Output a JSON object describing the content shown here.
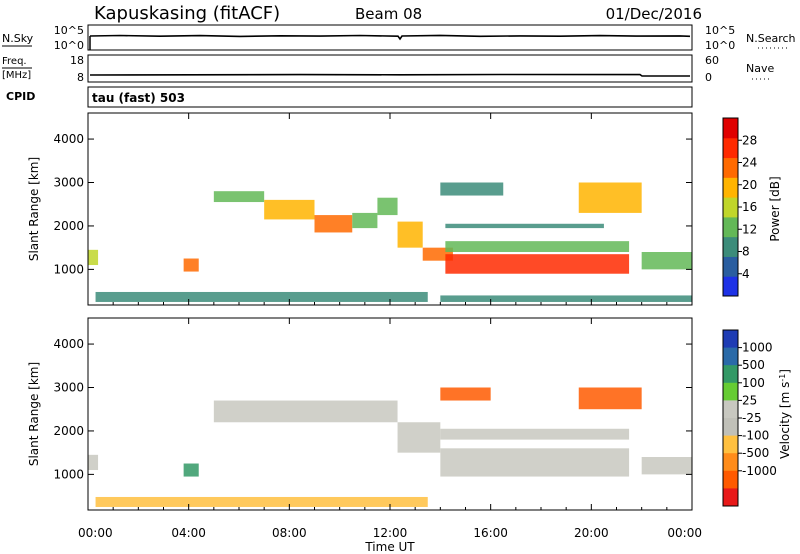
{
  "header": {
    "station": "Kapuskasing (fitACF)",
    "beam": "Beam 08",
    "date": "01/Dec/2016"
  },
  "sky_panel": {
    "left_label": "N.Sky",
    "left_ticks": [
      "10^5",
      "10^0"
    ],
    "right_ticks": [
      "10^5",
      "10^0"
    ],
    "right_label": "N.Search"
  },
  "freq_panel": {
    "left_label_top": "Freq.",
    "left_label_bottom": "[MHz]",
    "left_ticks": [
      "18",
      "8"
    ],
    "right_ticks": [
      "60",
      "0"
    ],
    "right_label": "Nave"
  },
  "cpid_panel": {
    "left_label": "CPID",
    "text": "tau (fast) 503"
  },
  "colors": {
    "power_scale": [
      "#1e32e6",
      "#2a5ea0",
      "#3c8c7a",
      "#63b857",
      "#c0d62a",
      "#ffb400",
      "#ff6a00",
      "#ff2a00",
      "#e00000"
    ],
    "velocity_scale": [
      "#e81919",
      "#ff5a00",
      "#ff8c1a",
      "#ffc040",
      "#c8c8c0",
      "#c0c0b8",
      "#66cc33",
      "#339966",
      "#2a6aa8",
      "#1e3cb4"
    ]
  },
  "chart_data": [
    {
      "type": "heatmap",
      "name": "power",
      "ylabel": "Slant Range [km]",
      "xlim": [
        "00:00",
        "24:00"
      ],
      "ylim": [
        180,
        4600
      ],
      "y_ticks": [
        1000,
        2000,
        3000,
        4000
      ],
      "colorbar": {
        "label": "Power [dB]",
        "range": [
          0,
          32
        ],
        "ticks": [
          4,
          8,
          12,
          16,
          20,
          24,
          28
        ]
      },
      "regions": [
        {
          "t0": 0.0,
          "t1": 0.4,
          "r0": 1100,
          "r1": 1450,
          "v": 15
        },
        {
          "t0": 0.3,
          "t1": 13.5,
          "r0": 250,
          "r1": 480,
          "v": 10
        },
        {
          "t0": 3.8,
          "t1": 4.4,
          "r0": 950,
          "r1": 1250,
          "v": 22
        },
        {
          "t0": 5.0,
          "t1": 7.0,
          "r0": 2550,
          "r1": 2800,
          "v": 14
        },
        {
          "t0": 7.0,
          "t1": 9.0,
          "r0": 2150,
          "r1": 2600,
          "v": 18
        },
        {
          "t0": 9.0,
          "t1": 10.5,
          "r0": 1850,
          "r1": 2250,
          "v": 22
        },
        {
          "t0": 10.5,
          "t1": 11.5,
          "r0": 1950,
          "r1": 2300,
          "v": 14
        },
        {
          "t0": 11.5,
          "t1": 12.3,
          "r0": 2250,
          "r1": 2650,
          "v": 14
        },
        {
          "t0": 12.3,
          "t1": 13.3,
          "r0": 1500,
          "r1": 2100,
          "v": 18
        },
        {
          "t0": 13.3,
          "t1": 14.5,
          "r0": 1200,
          "r1": 1500,
          "v": 22
        },
        {
          "t0": 14.2,
          "t1": 21.5,
          "r0": 900,
          "r1": 1350,
          "v": 26
        },
        {
          "t0": 14.2,
          "t1": 21.5,
          "r0": 1400,
          "r1": 1650,
          "v": 14
        },
        {
          "t0": 14.2,
          "t1": 20.5,
          "r0": 1950,
          "r1": 2050,
          "v": 8
        },
        {
          "t0": 14.0,
          "t1": 16.5,
          "r0": 2700,
          "r1": 3000,
          "v": 10
        },
        {
          "t0": 19.5,
          "t1": 22.0,
          "r0": 2300,
          "r1": 3000,
          "v": 18
        },
        {
          "t0": 22.0,
          "t1": 24.0,
          "r0": 1000,
          "r1": 1400,
          "v": 14
        },
        {
          "t0": 14.0,
          "t1": 24.0,
          "r0": 250,
          "r1": 400,
          "v": 8
        }
      ]
    },
    {
      "type": "heatmap",
      "name": "velocity",
      "xlabel": "Time UT",
      "ylabel": "Slant Range [km]",
      "xlim": [
        "00:00",
        "24:00"
      ],
      "x_ticks": [
        "00:00",
        "04:00",
        "08:00",
        "12:00",
        "16:00",
        "20:00",
        "00:00"
      ],
      "ylim": [
        180,
        4600
      ],
      "y_ticks": [
        1000,
        2000,
        3000,
        4000
      ],
      "colorbar": {
        "label": "Velocity [m s^-1]",
        "ticks": [
          "1000",
          "500",
          "100",
          "25",
          "-25",
          "-100",
          "-500",
          "-1000"
        ]
      },
      "regions": [
        {
          "t0": 0.0,
          "t1": 0.4,
          "r0": 1100,
          "r1": 1450,
          "v": 0
        },
        {
          "t0": 0.3,
          "t1": 13.5,
          "r0": 250,
          "r1": 480,
          "v": -60
        },
        {
          "t0": 3.8,
          "t1": 4.4,
          "r0": 950,
          "r1": 1250,
          "v": 150
        },
        {
          "t0": 5.0,
          "t1": 12.3,
          "r0": 2200,
          "r1": 2700,
          "v": 0
        },
        {
          "t0": 12.3,
          "t1": 14.0,
          "r0": 1500,
          "r1": 2200,
          "v": 0
        },
        {
          "t0": 14.0,
          "t1": 21.5,
          "r0": 950,
          "r1": 1600,
          "v": 0
        },
        {
          "t0": 14.0,
          "t1": 21.5,
          "r0": 1800,
          "r1": 2050,
          "v": 0
        },
        {
          "t0": 14.0,
          "t1": 16.0,
          "r0": 2700,
          "r1": 3000,
          "v": -200
        },
        {
          "t0": 19.5,
          "t1": 22.0,
          "r0": 2500,
          "r1": 3000,
          "v": -150
        },
        {
          "t0": 22.0,
          "t1": 24.0,
          "r0": 1000,
          "r1": 1400,
          "v": 0
        }
      ]
    }
  ]
}
